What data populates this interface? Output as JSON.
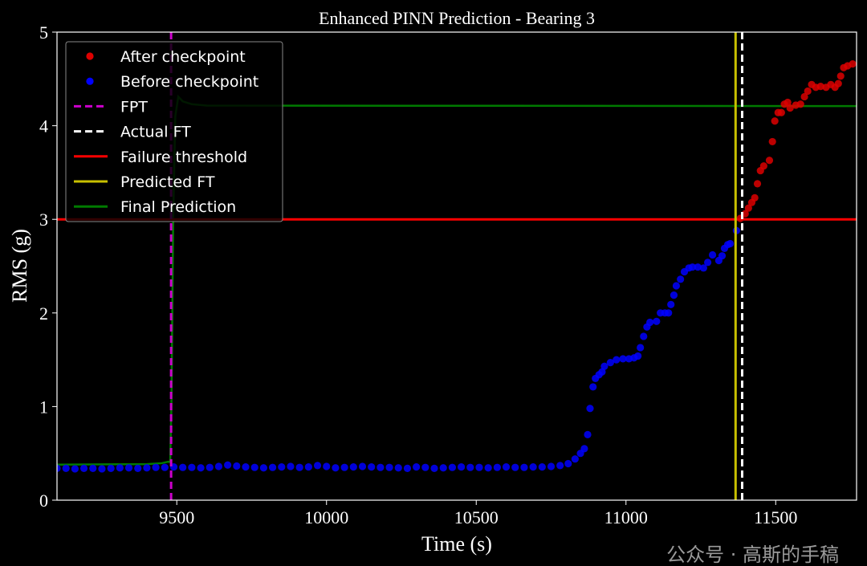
{
  "chart_data": {
    "type": "scatter",
    "title": "Enhanced PINN Prediction - Bearing 3",
    "xlabel": "Time (s)",
    "ylabel": "RMS (g)",
    "xlim": [
      9100,
      11770
    ],
    "ylim": [
      0,
      5
    ],
    "xticks": [
      9500,
      10000,
      10500,
      11000,
      11500
    ],
    "yticks": [
      0,
      1,
      2,
      3,
      4,
      5
    ],
    "grid": false,
    "legend_position": "top-left",
    "series": [
      {
        "name": "After checkpoint",
        "kind": "scatter",
        "color": "#dd0000",
        "points": [
          [
            11382,
            3.01
          ],
          [
            11398,
            3.06
          ],
          [
            11409,
            3.12
          ],
          [
            11420,
            3.18
          ],
          [
            11430,
            3.23
          ],
          [
            11439,
            3.38
          ],
          [
            11449,
            3.52
          ],
          [
            11460,
            3.57
          ],
          [
            11479,
            3.63
          ],
          [
            11489,
            3.83
          ],
          [
            11497,
            4.05
          ],
          [
            11508,
            4.14
          ],
          [
            11519,
            4.14
          ],
          [
            11529,
            4.23
          ],
          [
            11540,
            4.25
          ],
          [
            11548,
            4.19
          ],
          [
            11567,
            4.22
          ],
          [
            11583,
            4.23
          ],
          [
            11596,
            4.31
          ],
          [
            11607,
            4.37
          ],
          [
            11620,
            4.44
          ],
          [
            11634,
            4.41
          ],
          [
            11650,
            4.42
          ],
          [
            11668,
            4.41
          ],
          [
            11684,
            4.44
          ],
          [
            11698,
            4.41
          ],
          [
            11709,
            4.45
          ],
          [
            11717,
            4.53
          ],
          [
            11727,
            4.62
          ],
          [
            11740,
            4.64
          ],
          [
            11757,
            4.66
          ]
        ]
      },
      {
        "name": "Before checkpoint",
        "kind": "scatter",
        "color": "#0000ff",
        "points": [
          [
            9100,
            0.34
          ],
          [
            9130,
            0.34
          ],
          [
            9160,
            0.335
          ],
          [
            9190,
            0.34
          ],
          [
            9220,
            0.34
          ],
          [
            9250,
            0.335
          ],
          [
            9280,
            0.34
          ],
          [
            9310,
            0.345
          ],
          [
            9340,
            0.345
          ],
          [
            9370,
            0.34
          ],
          [
            9400,
            0.345
          ],
          [
            9430,
            0.35
          ],
          [
            9460,
            0.35
          ],
          [
            9490,
            0.355
          ],
          [
            9520,
            0.35
          ],
          [
            9550,
            0.35
          ],
          [
            9580,
            0.345
          ],
          [
            9610,
            0.35
          ],
          [
            9640,
            0.36
          ],
          [
            9670,
            0.375
          ],
          [
            9700,
            0.365
          ],
          [
            9730,
            0.355
          ],
          [
            9760,
            0.35
          ],
          [
            9790,
            0.345
          ],
          [
            9820,
            0.35
          ],
          [
            9850,
            0.355
          ],
          [
            9880,
            0.36
          ],
          [
            9910,
            0.35
          ],
          [
            9940,
            0.355
          ],
          [
            9970,
            0.37
          ],
          [
            10000,
            0.36
          ],
          [
            10030,
            0.345
          ],
          [
            10060,
            0.35
          ],
          [
            10090,
            0.355
          ],
          [
            10120,
            0.36
          ],
          [
            10150,
            0.355
          ],
          [
            10180,
            0.35
          ],
          [
            10210,
            0.35
          ],
          [
            10240,
            0.345
          ],
          [
            10270,
            0.34
          ],
          [
            10300,
            0.355
          ],
          [
            10330,
            0.35
          ],
          [
            10360,
            0.34
          ],
          [
            10390,
            0.345
          ],
          [
            10420,
            0.35
          ],
          [
            10450,
            0.355
          ],
          [
            10480,
            0.35
          ],
          [
            10510,
            0.35
          ],
          [
            10540,
            0.345
          ],
          [
            10570,
            0.35
          ],
          [
            10600,
            0.355
          ],
          [
            10630,
            0.35
          ],
          [
            10660,
            0.35
          ],
          [
            10690,
            0.355
          ],
          [
            10720,
            0.355
          ],
          [
            10750,
            0.36
          ],
          [
            10780,
            0.37
          ],
          [
            10807,
            0.39
          ],
          [
            10830,
            0.44
          ],
          [
            10848,
            0.5
          ],
          [
            10861,
            0.55
          ],
          [
            10872,
            0.7
          ],
          [
            10880,
            0.98
          ],
          [
            10890,
            1.21
          ],
          [
            10898,
            1.3
          ],
          [
            10910,
            1.34
          ],
          [
            10920,
            1.37
          ],
          [
            10928,
            1.43
          ],
          [
            10948,
            1.47
          ],
          [
            10968,
            1.5
          ],
          [
            10990,
            1.51
          ],
          [
            11010,
            1.51
          ],
          [
            11027,
            1.52
          ],
          [
            11040,
            1.54
          ],
          [
            11048,
            1.63
          ],
          [
            11059,
            1.75
          ],
          [
            11070,
            1.85
          ],
          [
            11080,
            1.9
          ],
          [
            11102,
            1.91
          ],
          [
            11115,
            2.0
          ],
          [
            11130,
            2.0
          ],
          [
            11142,
            2.0
          ],
          [
            11150,
            2.09
          ],
          [
            11160,
            2.19
          ],
          [
            11168,
            2.29
          ],
          [
            11182,
            2.36
          ],
          [
            11195,
            2.44
          ],
          [
            11210,
            2.48
          ],
          [
            11222,
            2.49
          ],
          [
            11240,
            2.49
          ],
          [
            11259,
            2.48
          ],
          [
            11273,
            2.54
          ],
          [
            11289,
            2.62
          ],
          [
            11310,
            2.56
          ],
          [
            11321,
            2.61
          ],
          [
            11329,
            2.69
          ],
          [
            11340,
            2.73
          ],
          [
            11348,
            2.74
          ],
          [
            11369,
            2.88
          ]
        ]
      },
      {
        "name": "FPT",
        "kind": "vline",
        "color": "#cc00cc",
        "style": "dashed",
        "x": 9481
      },
      {
        "name": "Actual FT",
        "kind": "vline",
        "color": "#ffffff",
        "style": "dashed",
        "x": 11388
      },
      {
        "name": "Failure threshold",
        "kind": "hline",
        "color": "#ff0000",
        "style": "solid",
        "y": 3
      },
      {
        "name": "Predicted FT",
        "kind": "vline",
        "color": "#c8c000",
        "style": "solid",
        "x": 11366
      },
      {
        "name": "Final Prediction",
        "kind": "line",
        "color": "#007a00",
        "style": "solid",
        "points": [
          [
            9100,
            0.38
          ],
          [
            9400,
            0.385
          ],
          [
            9450,
            0.395
          ],
          [
            9470,
            0.41
          ],
          [
            9478,
            0.41
          ],
          [
            9482,
            1.0
          ],
          [
            9488,
            3.0
          ],
          [
            9495,
            4.1
          ],
          [
            9505,
            4.31
          ],
          [
            9520,
            4.26
          ],
          [
            9550,
            4.23
          ],
          [
            9600,
            4.215
          ],
          [
            11770,
            4.21
          ]
        ]
      }
    ]
  },
  "watermark": "公众号 · 高斯的手稿"
}
